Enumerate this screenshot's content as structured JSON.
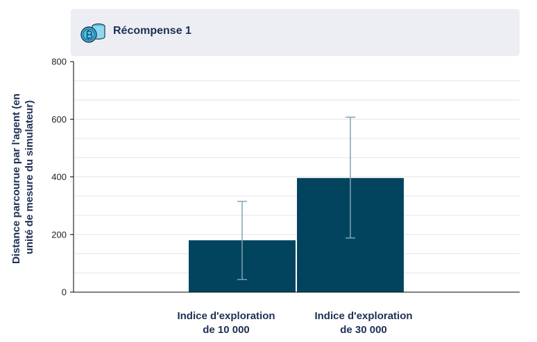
{
  "header": {
    "title": "Récompense 1",
    "icon": "bitcoin-coin-stack-icon"
  },
  "colors": {
    "bar": "#02445e",
    "error": "#7fa3b3",
    "grid": "#d9d9d9",
    "axis": "#000000"
  },
  "chart_data": {
    "type": "bar",
    "title": "Récompense 1",
    "ylabel_lines": [
      "Distance parcourue par l'agent (en",
      "unité de mesure du simulateur)"
    ],
    "categories": [
      [
        "Indice d'exploration",
        "de 10 000"
      ],
      [
        "Indice d'exploration",
        "de 30 000"
      ]
    ],
    "values": [
      180,
      396
    ],
    "error_low": [
      44,
      188
    ],
    "error_high": [
      315,
      607
    ],
    "ylim": [
      0,
      800
    ],
    "yticks": [
      0,
      200,
      400,
      600,
      800
    ],
    "grid": true,
    "minor_grid_step": 66.67
  }
}
